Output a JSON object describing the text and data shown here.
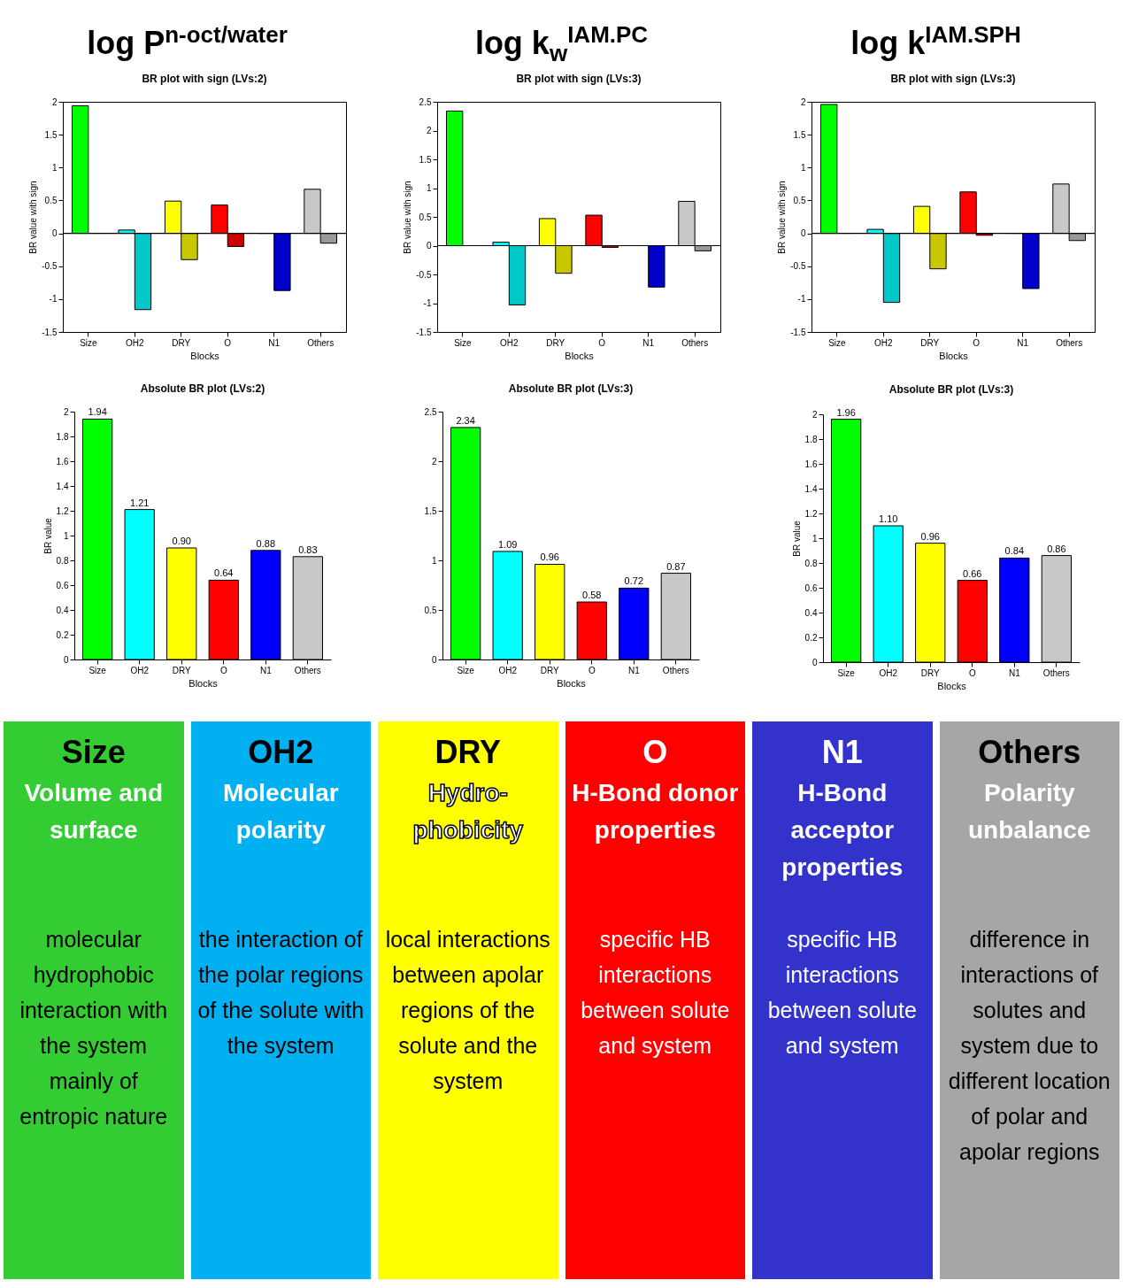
{
  "chart_data": [
    {
      "type": "bar",
      "title": "log P$^{n-oct/water}$",
      "subtitle": "BR plot with sign (LVs:2)",
      "xlabel": "Blocks",
      "ylabel": "BR value with sign",
      "categories": [
        "Size",
        "OH2",
        "DRY",
        "O",
        "N1",
        "Others"
      ],
      "series": [
        {
          "colors": [
            "#00ff00",
            "#00ffff",
            "#ffff00",
            "#ff0000",
            "#0000ff",
            "#c8c8c8"
          ],
          "values": [
            1.94,
            0.05,
            0.49,
            0.43,
            0,
            0.67
          ]
        },
        {
          "colors": [
            "#00c800",
            "#00c8c8",
            "#c8c800",
            "#c80000",
            "#0000c8",
            "#999999"
          ],
          "values": [
            0,
            -1.16,
            -0.4,
            -0.2,
            -0.87,
            -0.15
          ]
        }
      ],
      "ylim": [
        -1.5,
        2
      ],
      "yticks": [
        -1.5,
        -1,
        -0.5,
        0,
        0.5,
        1,
        1.5,
        2
      ],
      "ref_lines": [
        {
          "axis": "y",
          "value": 0
        }
      ],
      "grid": false
    },
    {
      "type": "bar",
      "title": "log k$_{w}$$^{IAM.PC}$",
      "subtitle": "BR plot with sign (LVs:3)",
      "xlabel": "Blocks",
      "ylabel": "BR value with sign",
      "categories": [
        "Size",
        "OH2",
        "DRY",
        "O",
        "N1",
        "Others"
      ],
      "series": [
        {
          "colors": [
            "#00ff00",
            "#00ffff",
            "#ffff00",
            "#ff0000",
            "#0000ff",
            "#c8c8c8"
          ],
          "values": [
            2.34,
            0.06,
            0.47,
            0.53,
            0,
            0.77
          ]
        },
        {
          "colors": [
            "#00c800",
            "#00c8c8",
            "#c8c800",
            "#c80000",
            "#0000c8",
            "#999999"
          ],
          "values": [
            0,
            -1.03,
            -0.48,
            -0.03,
            -0.72,
            -0.09
          ]
        }
      ],
      "ylim": [
        -1.5,
        2.5
      ],
      "yticks": [
        -1.5,
        -1,
        -0.5,
        0,
        0.5,
        1,
        1.5,
        2,
        2.5
      ],
      "ref_lines": [
        {
          "axis": "y",
          "value": 0
        }
      ],
      "grid": false
    },
    {
      "type": "bar",
      "title": "log k$^{IAM.SPH}$",
      "subtitle": "BR plot with sign (LVs:3)",
      "xlabel": "Blocks",
      "ylabel": "BR value with sign",
      "categories": [
        "Size",
        "OH2",
        "DRY",
        "O",
        "N1",
        "Others"
      ],
      "series": [
        {
          "colors": [
            "#00ff00",
            "#00ffff",
            "#ffff00",
            "#ff0000",
            "#0000ff",
            "#c8c8c8"
          ],
          "values": [
            1.96,
            0.06,
            0.41,
            0.63,
            0,
            0.75
          ]
        },
        {
          "colors": [
            "#00c800",
            "#00c8c8",
            "#c8c800",
            "#c80000",
            "#0000c8",
            "#999999"
          ],
          "values": [
            0,
            -1.05,
            -0.54,
            -0.03,
            -0.84,
            -0.11
          ]
        }
      ],
      "ylim": [
        -1.5,
        2
      ],
      "yticks": [
        -1.5,
        -1,
        -0.5,
        0,
        0.5,
        1,
        1.5,
        2
      ],
      "ref_lines": [
        {
          "axis": "y",
          "value": 0
        }
      ],
      "grid": false
    },
    {
      "type": "bar",
      "title": "Absolute BR plot (LVs:2)",
      "xlabel": "Blocks",
      "ylabel": "BR value",
      "categories": [
        "Size",
        "OH2",
        "DRY",
        "O",
        "N1",
        "Others"
      ],
      "colors": [
        "#00ff00",
        "#00ffff",
        "#ffff00",
        "#ff0000",
        "#0000ff",
        "#c8c8c8"
      ],
      "values": [
        1.94,
        1.21,
        0.9,
        0.64,
        0.88,
        0.83
      ],
      "value_labels": [
        "1.94",
        "1.21",
        "0.90",
        "0.64",
        "0.88",
        "0.83"
      ],
      "ylim": [
        0,
        2
      ],
      "yticks": [
        0,
        0.2,
        0.4,
        0.6,
        0.8,
        1,
        1.2,
        1.4,
        1.6,
        1.8,
        2
      ],
      "grid": false
    },
    {
      "type": "bar",
      "title": "Absolute BR plot (LVs:3)",
      "xlabel": "Blocks",
      "categories": [
        "Size",
        "OH2",
        "DRY",
        "O",
        "N1",
        "Others"
      ],
      "colors": [
        "#00ff00",
        "#00ffff",
        "#ffff00",
        "#ff0000",
        "#0000ff",
        "#c8c8c8"
      ],
      "values": [
        2.34,
        1.09,
        0.96,
        0.58,
        0.72,
        0.87
      ],
      "value_labels": [
        "2.34",
        "1.09",
        "0.96",
        "0.58",
        "0.72",
        "0.87"
      ],
      "ylim": [
        0,
        2.5
      ],
      "yticks": [
        0,
        0.5,
        1,
        1.5,
        2,
        2.5
      ],
      "grid": false
    },
    {
      "type": "bar",
      "title": "Absolute BR plot (LVs:3)",
      "xlabel": "Blocks",
      "ylabel": "BR value",
      "categories": [
        "Size",
        "OH2",
        "DRY",
        "O",
        "N1",
        "Others"
      ],
      "colors": [
        "#00ff00",
        "#00ffff",
        "#ffff00",
        "#ff0000",
        "#0000ff",
        "#c8c8c8"
      ],
      "values": [
        1.96,
        1.1,
        0.96,
        0.66,
        0.84,
        0.86
      ],
      "value_labels": [
        "1.96",
        "1.10",
        "0.96",
        "0.66",
        "0.84",
        "0.86"
      ],
      "ylim": [
        0,
        2
      ],
      "yticks": [
        0,
        0.2,
        0.4,
        0.6,
        0.8,
        1,
        1.2,
        1.4,
        1.6,
        1.8,
        2
      ],
      "grid": false
    },
    {
      "type": "other",
      "title": "Size",
      "subtitle": "Volume and surface",
      "color": "#33cc33",
      "annotations": [
        "molecular hydrophobic interaction with the system mainly of entropic nature"
      ]
    },
    {
      "type": "other",
      "title": "OH2",
      "subtitle": "Molecular polarity",
      "color": "#00b0f0",
      "annotations": [
        "the interaction of the polar regions of the solute with the system"
      ]
    },
    {
      "type": "other",
      "title": "DRY",
      "subtitle": "Hydro-phobicity",
      "color": "#ffff00",
      "annotations": [
        "local interactions between apolar regions of the solute and the system"
      ]
    },
    {
      "type": "other",
      "title": "O",
      "subtitle": "H-Bond donor properties",
      "color": "#ff0000",
      "annotations": [
        "specific HB interactions between solute and system"
      ]
    },
    {
      "type": "other",
      "title": "N1",
      "subtitle": "H-Bond acceptor properties",
      "color": "#3333cc",
      "annotations": [
        "specific HB interactions between solute and system"
      ]
    },
    {
      "type": "other",
      "title": "Others",
      "subtitle": "Polarity unbalance",
      "color": "#a6a6a6",
      "annotations": [
        "difference in interactions of solutes and system due to different location of polar and apolar regions"
      ]
    }
  ]
}
